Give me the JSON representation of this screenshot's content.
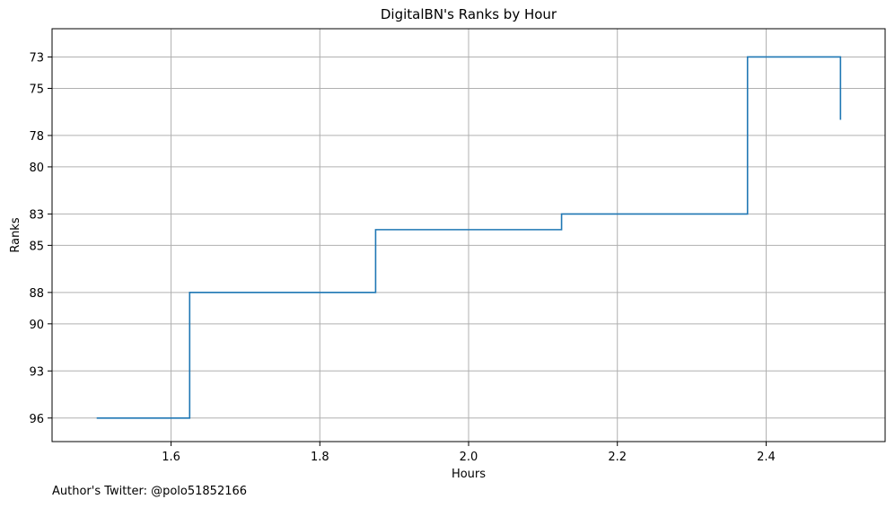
{
  "chart_data": {
    "type": "line",
    "step": "post",
    "title": "DigitalBN's Ranks by Hour",
    "xlabel": "Hours",
    "ylabel": "Ranks",
    "xlim": [
      1.44,
      2.56
    ],
    "ylim": [
      97.5,
      71.2
    ],
    "xticks": [
      1.6,
      1.8,
      2.0,
      2.2,
      2.4
    ],
    "xtick_labels": [
      "1.6",
      "1.8",
      "2.0",
      "2.2",
      "2.4"
    ],
    "yticks": [
      73,
      75,
      78,
      80,
      83,
      85,
      88,
      90,
      93,
      96
    ],
    "ytick_labels": [
      "73",
      "75",
      "78",
      "80",
      "83",
      "85",
      "88",
      "90",
      "93",
      "96"
    ],
    "grid": true,
    "legend": false,
    "series": [
      {
        "color": "#1f77b4",
        "x": [
          1.5,
          1.625,
          1.875,
          2.125,
          2.375,
          2.5
        ],
        "y": [
          96,
          88,
          84,
          83,
          73,
          77
        ]
      }
    ]
  },
  "footnote": "Author's Twitter: @polo51852166"
}
